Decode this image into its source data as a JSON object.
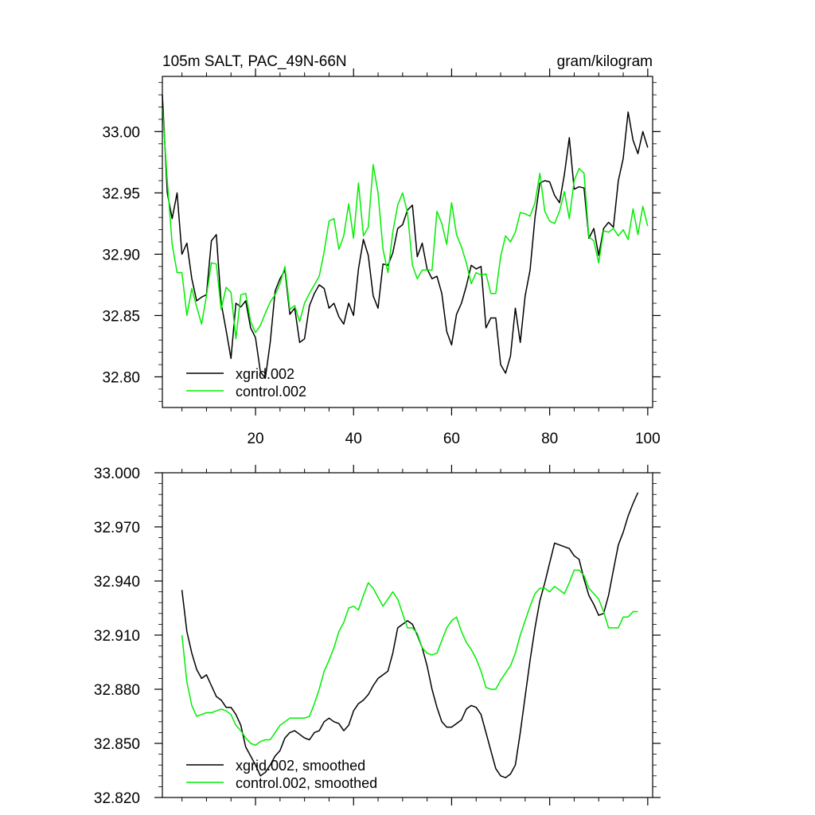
{
  "chart_data": [
    {
      "type": "line",
      "title": "105m SALT, PAC_49N-66N",
      "units": "gram/kilogram",
      "xlim": [
        1,
        101
      ],
      "ylim": [
        32.775,
        33.045
      ],
      "x_ticks": [
        20,
        40,
        60,
        80,
        100
      ],
      "x_tick_labels": [
        "20",
        "40",
        "60",
        "80",
        "100"
      ],
      "y_ticks": [
        32.8,
        32.85,
        32.9,
        32.95,
        33.0
      ],
      "y_tick_labels": [
        "32.80",
        "32.85",
        "32.90",
        "32.95",
        "33.00"
      ],
      "legend_position": "bottom-left",
      "series": [
        {
          "name": "xgrid.002",
          "color": "#000000",
          "values": [
            33.03,
            32.95,
            32.929,
            32.95,
            32.9,
            32.909,
            32.88,
            32.862,
            32.865,
            32.867,
            32.911,
            32.916,
            32.86,
            32.838,
            32.815,
            32.86,
            32.857,
            32.862,
            32.84,
            32.832,
            32.804,
            32.799,
            32.828,
            32.87,
            32.88,
            32.887,
            32.851,
            32.856,
            32.828,
            32.831,
            32.858,
            32.868,
            32.875,
            32.872,
            32.856,
            32.86,
            32.849,
            32.843,
            32.86,
            32.85,
            32.888,
            32.912,
            32.899,
            32.866,
            32.856,
            32.892,
            32.891,
            32.901,
            32.921,
            32.924,
            32.936,
            32.94,
            32.898,
            32.909,
            32.888,
            32.88,
            32.882,
            32.868,
            32.837,
            32.826,
            32.851,
            32.86,
            32.874,
            32.891,
            32.888,
            32.89,
            32.84,
            32.848,
            32.848,
            32.81,
            32.803,
            32.817,
            32.856,
            32.828,
            32.866,
            32.887,
            32.93,
            32.958,
            32.96,
            32.959,
            32.948,
            32.942,
            32.965,
            32.995,
            32.953,
            32.955,
            32.954,
            32.913,
            32.921,
            32.899,
            32.921,
            32.926,
            32.922,
            32.96,
            32.978,
            33.016,
            32.993,
            32.982,
            33.0,
            32.987
          ]
        },
        {
          "name": "control.002",
          "color": "#00ee00",
          "values": [
            33.02,
            32.96,
            32.908,
            32.885,
            32.885,
            32.85,
            32.872,
            32.857,
            32.843,
            32.866,
            32.893,
            32.892,
            32.855,
            32.873,
            32.869,
            32.831,
            32.867,
            32.868,
            32.845,
            32.836,
            32.842,
            32.852,
            32.861,
            32.867,
            32.876,
            32.89,
            32.855,
            32.858,
            32.845,
            32.86,
            32.868,
            32.875,
            32.882,
            32.902,
            32.927,
            32.929,
            32.904,
            32.915,
            32.941,
            32.913,
            32.958,
            32.915,
            32.922,
            32.973,
            32.95,
            32.904,
            32.885,
            32.918,
            32.94,
            32.95,
            32.934,
            32.891,
            32.88,
            32.887,
            32.887,
            32.887,
            32.935,
            32.925,
            32.908,
            32.942,
            32.916,
            32.906,
            32.893,
            32.876,
            32.885,
            32.883,
            32.884,
            32.868,
            32.868,
            32.898,
            32.915,
            32.91,
            32.918,
            32.934,
            32.933,
            32.931,
            32.942,
            32.966,
            32.935,
            32.927,
            32.925,
            32.935,
            32.951,
            32.929,
            32.96,
            32.97,
            32.966,
            32.914,
            32.911,
            32.893,
            32.919,
            32.918,
            32.921,
            32.915,
            32.92,
            32.912,
            32.937,
            32.916,
            32.939,
            32.923
          ]
        }
      ]
    },
    {
      "type": "line",
      "title": "",
      "units": "",
      "xlim": [
        1,
        101
      ],
      "ylim": [
        32.82,
        33.0
      ],
      "x_ticks": [
        20,
        40,
        60,
        80,
        100
      ],
      "x_tick_labels": [],
      "y_ticks": [
        32.82,
        32.85,
        32.88,
        32.91,
        32.94,
        32.97,
        33.0
      ],
      "y_tick_labels": [
        "32.820",
        "32.850",
        "32.880",
        "32.910",
        "32.940",
        "32.970",
        "33.000"
      ],
      "legend_position": "bottom-left",
      "series": [
        {
          "name": "xgrid.002, smoothed",
          "color": "#000000",
          "x": [
            5,
            6,
            7,
            8,
            9,
            10,
            11,
            12,
            13,
            14,
            15,
            16,
            17,
            18,
            19,
            20,
            21,
            22,
            23,
            24,
            25,
            26,
            27,
            28,
            29,
            30,
            31,
            32,
            33,
            34,
            35,
            36,
            37,
            38,
            39,
            40,
            41,
            42,
            43,
            44,
            45,
            46,
            47,
            48,
            49,
            50,
            51,
            52,
            53,
            54,
            55,
            56,
            57,
            58,
            59,
            60,
            61,
            62,
            63,
            64,
            65,
            66,
            67,
            68,
            69,
            70,
            71,
            72,
            73,
            74,
            75,
            76,
            77,
            78,
            79,
            80,
            81,
            82,
            83,
            84,
            85,
            86,
            87,
            88,
            89,
            90,
            91,
            92,
            93,
            94,
            95,
            96,
            97,
            98
          ],
          "values": [
            32.935,
            32.912,
            32.9,
            32.891,
            32.886,
            32.888,
            32.882,
            32.876,
            32.874,
            32.87,
            32.87,
            32.866,
            32.86,
            32.848,
            32.843,
            32.838,
            32.832,
            32.834,
            32.838,
            32.843,
            32.846,
            32.853,
            32.856,
            32.857,
            32.855,
            32.853,
            32.852,
            32.856,
            32.857,
            32.862,
            32.864,
            32.862,
            32.861,
            32.857,
            32.86,
            32.868,
            32.872,
            32.874,
            32.877,
            32.882,
            32.886,
            32.888,
            32.89,
            32.9,
            32.914,
            32.916,
            32.918,
            32.916,
            32.91,
            32.903,
            32.893,
            32.88,
            32.87,
            32.862,
            32.859,
            32.859,
            32.861,
            32.863,
            32.869,
            32.871,
            32.87,
            32.866,
            32.856,
            32.846,
            32.836,
            32.832,
            32.831,
            32.833,
            32.838,
            32.856,
            32.876,
            32.896,
            32.914,
            32.929,
            32.939,
            32.95,
            32.961,
            32.96,
            32.959,
            32.958,
            32.954,
            32.952,
            32.941,
            32.932,
            32.927,
            32.921,
            32.922,
            32.932,
            32.946,
            32.96,
            32.967,
            32.976,
            32.983,
            32.989
          ]
        },
        {
          "name": "control.002, smoothed",
          "color": "#00ee00",
          "x": [
            5,
            6,
            7,
            8,
            9,
            10,
            11,
            12,
            13,
            14,
            15,
            16,
            17,
            18,
            19,
            20,
            21,
            22,
            23,
            24,
            25,
            26,
            27,
            28,
            29,
            30,
            31,
            32,
            33,
            34,
            35,
            36,
            37,
            38,
            39,
            40,
            41,
            42,
            43,
            44,
            45,
            46,
            47,
            48,
            49,
            50,
            51,
            52,
            53,
            54,
            55,
            56,
            57,
            58,
            59,
            60,
            61,
            62,
            63,
            64,
            65,
            66,
            67,
            68,
            69,
            70,
            71,
            72,
            73,
            74,
            75,
            76,
            77,
            78,
            79,
            80,
            81,
            82,
            83,
            84,
            85,
            86,
            87,
            88,
            89,
            90,
            91,
            92,
            93,
            94,
            95,
            96,
            97,
            98
          ],
          "values": [
            32.91,
            32.884,
            32.871,
            32.865,
            32.866,
            32.867,
            32.867,
            32.868,
            32.869,
            32.868,
            32.866,
            32.86,
            32.857,
            32.853,
            32.85,
            32.849,
            32.851,
            32.852,
            32.852,
            32.856,
            32.86,
            32.862,
            32.864,
            32.864,
            32.864,
            32.864,
            32.865,
            32.872,
            32.88,
            32.89,
            32.896,
            32.903,
            32.912,
            32.917,
            32.925,
            32.926,
            32.924,
            32.932,
            32.939,
            32.936,
            32.931,
            32.926,
            32.93,
            32.934,
            32.93,
            32.922,
            32.914,
            32.914,
            32.911,
            32.903,
            32.9,
            32.899,
            32.9,
            32.907,
            32.914,
            32.918,
            32.92,
            32.912,
            32.906,
            32.902,
            32.897,
            32.89,
            32.881,
            32.88,
            32.88,
            32.885,
            32.889,
            32.893,
            32.9,
            32.91,
            32.918,
            32.926,
            32.933,
            32.936,
            32.936,
            32.934,
            32.937,
            32.935,
            32.933,
            32.939,
            32.946,
            32.946,
            32.943,
            32.936,
            32.933,
            32.93,
            32.923,
            32.914,
            32.914,
            32.914,
            32.92,
            32.92,
            32.923,
            32.923
          ]
        }
      ]
    }
  ]
}
